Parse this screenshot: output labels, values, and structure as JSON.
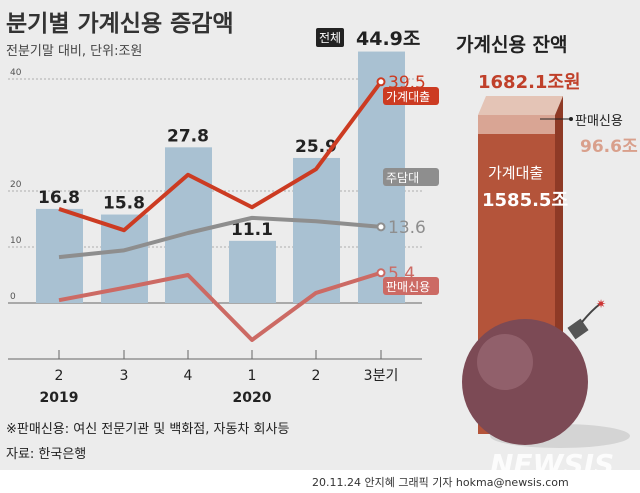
{
  "title": "분기별 가계신용 증감액",
  "subtitle": "전분기말 대비, 단위:조원",
  "total_badge": "전체",
  "chart_data": {
    "type": "bar+line",
    "title": "분기별 가계신용 증감액",
    "categories": [
      "2",
      "3",
      "4",
      "1",
      "2",
      "3분기"
    ],
    "year_labels": [
      {
        "label": "2019",
        "at": "2"
      },
      {
        "label": "2020",
        "at": "1"
      }
    ],
    "yticks": [
      0,
      10,
      20,
      40
    ],
    "ylim": [
      -10,
      45
    ],
    "grid": true,
    "bars": {
      "name": "전체",
      "values": [
        16.8,
        15.8,
        27.8,
        11.1,
        25.9,
        44.9
      ],
      "labels": [
        "16.8",
        "15.8",
        "27.8",
        "11.1",
        "25.9",
        "44.9조"
      ],
      "color": "#a9c1d2"
    },
    "series": [
      {
        "name": "가계대출",
        "values": [
          16.8,
          13.0,
          22.9,
          17.1,
          23.9,
          39.5
        ],
        "end_label": "39.5",
        "color": "#cc3b22"
      },
      {
        "name": "주담대",
        "values": [
          8.2,
          9.4,
          12.5,
          15.2,
          14.6,
          13.6
        ],
        "end_label": "13.6",
        "color": "#8e8e8e"
      },
      {
        "name": "판매신용",
        "values": [
          0.5,
          2.7,
          5.0,
          -6.6,
          1.8,
          5.4
        ],
        "end_label": "5.4",
        "color": "#cc6a64"
      }
    ]
  },
  "balance": {
    "title": "가계신용 잔액",
    "total": "1682.1조원",
    "loan_label": "가계대출",
    "loan_value": "1585.5조",
    "sales_label": "판매신용",
    "sales_value": "96.6조"
  },
  "footnote": "※판매신용: 여신 전문기관 및 백화점, 자동차 회사등",
  "source": "자료: 한국은행",
  "credit": "20.11.24 안지혜 그래픽 기자 hokma@newsis.com",
  "watermark": "NEWSIS"
}
